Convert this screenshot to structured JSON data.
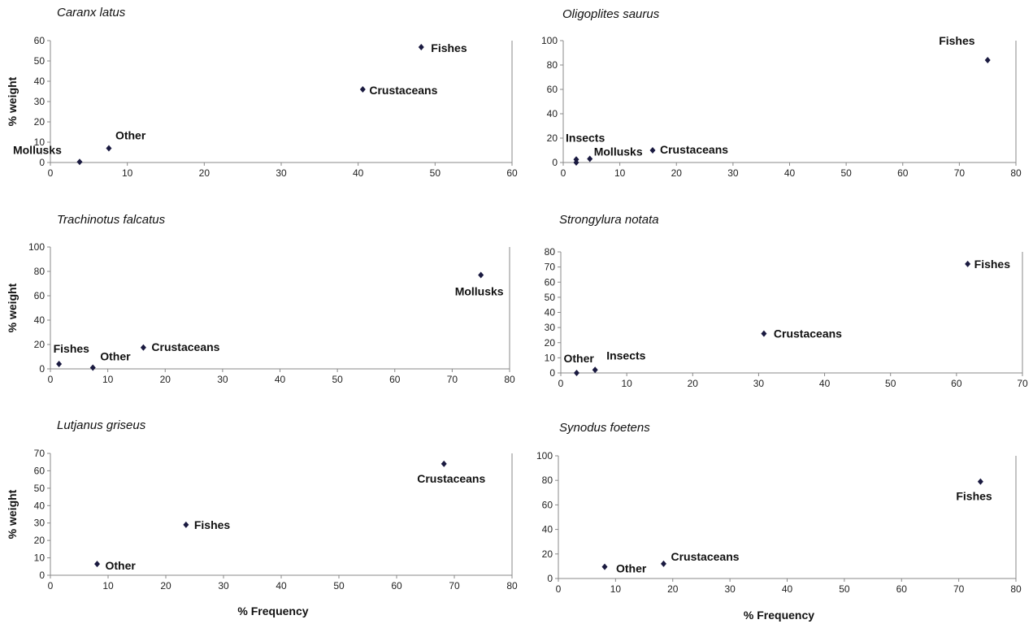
{
  "chart_data": [
    {
      "type": "scatter",
      "title": "Caranx latus",
      "xlabel": "",
      "ylabel": "% weight",
      "xlim": [
        0,
        60
      ],
      "xticks": [
        0,
        10,
        20,
        30,
        40,
        50,
        60
      ],
      "ylim": [
        0,
        60
      ],
      "yticks": [
        0,
        10,
        20,
        30,
        40,
        50,
        60
      ],
      "points": [
        {
          "label": "Fishes",
          "x": 48.2,
          "y": 56.8
        },
        {
          "label": "Crustaceans",
          "x": 40.6,
          "y": 36
        },
        {
          "label": "Other",
          "x": 7.6,
          "y": 7
        },
        {
          "label": "Mollusks",
          "x": 3.8,
          "y": 0.3
        }
      ]
    },
    {
      "type": "scatter",
      "title": "Oligoplites saurus",
      "xlabel": "",
      "ylabel": "",
      "xlim": [
        0,
        80
      ],
      "xticks": [
        0,
        10,
        20,
        30,
        40,
        50,
        60,
        70,
        80
      ],
      "ylim": [
        0,
        100
      ],
      "yticks": [
        0,
        20,
        40,
        60,
        80,
        100
      ],
      "points": [
        {
          "label": "Fishes",
          "x": 75,
          "y": 84
        },
        {
          "label": "Crustaceans",
          "x": 15.8,
          "y": 10
        },
        {
          "label": "Mollusks",
          "x": 4.7,
          "y": 3
        },
        {
          "label": "Insects",
          "x": 2.3,
          "y": 2.5
        },
        {
          "label": "",
          "x": 2.3,
          "y": 0
        }
      ]
    },
    {
      "type": "scatter",
      "title": "Trachinotus falcatus",
      "xlabel": "",
      "ylabel": "% weight",
      "xlim": [
        0,
        80
      ],
      "xticks": [
        0,
        10,
        20,
        30,
        40,
        50,
        60,
        70,
        80
      ],
      "ylim": [
        0,
        100
      ],
      "yticks": [
        0,
        20,
        40,
        60,
        80,
        100
      ],
      "points": [
        {
          "label": "Mollusks",
          "x": 75,
          "y": 77
        },
        {
          "label": "Crustaceans",
          "x": 16.2,
          "y": 17.5
        },
        {
          "label": "Fishes",
          "x": 1.5,
          "y": 4
        },
        {
          "label": "Other",
          "x": 7.4,
          "y": 1
        }
      ]
    },
    {
      "type": "scatter",
      "title": "Strongylura notata",
      "xlabel": "",
      "ylabel": "",
      "xlim": [
        0,
        70
      ],
      "xticks": [
        0,
        10,
        20,
        30,
        40,
        50,
        60,
        70
      ],
      "ylim": [
        0,
        80
      ],
      "yticks": [
        0,
        10,
        20,
        30,
        40,
        50,
        60,
        70,
        80
      ],
      "points": [
        {
          "label": "Fishes",
          "x": 61.7,
          "y": 72
        },
        {
          "label": "Crustaceans",
          "x": 30.8,
          "y": 26
        },
        {
          "label": "Insects",
          "x": 5.2,
          "y": 2
        },
        {
          "label": "Other",
          "x": 2.4,
          "y": 0
        }
      ]
    },
    {
      "type": "scatter",
      "title": "Lutjanus griseus",
      "xlabel": "% Frequency",
      "ylabel": "% weight",
      "xlim": [
        0,
        80
      ],
      "xticks": [
        0,
        10,
        20,
        30,
        40,
        50,
        60,
        70,
        80
      ],
      "ylim": [
        0,
        70
      ],
      "yticks": [
        0,
        10,
        20,
        30,
        40,
        50,
        60,
        70
      ],
      "points": [
        {
          "label": "Crustaceans",
          "x": 68.2,
          "y": 64
        },
        {
          "label": "Fishes",
          "x": 23.5,
          "y": 29
        },
        {
          "label": "Other",
          "x": 8.1,
          "y": 6.5
        }
      ]
    },
    {
      "type": "scatter",
      "title": "Synodus foetens",
      "xlabel": "% Frequency",
      "ylabel": "",
      "xlim": [
        0,
        80
      ],
      "xticks": [
        0,
        10,
        20,
        30,
        40,
        50,
        60,
        70,
        80
      ],
      "ylim": [
        0,
        100
      ],
      "yticks": [
        0,
        20,
        40,
        60,
        80,
        100
      ],
      "points": [
        {
          "label": "Fishes",
          "x": 73.8,
          "y": 79
        },
        {
          "label": "Crustaceans",
          "x": 18.4,
          "y": 12
        },
        {
          "label": "Other",
          "x": 8.1,
          "y": 9.5
        }
      ]
    }
  ],
  "colors": {
    "marker": "#1a1a40",
    "axis": "#888888",
    "text": "#111111"
  }
}
